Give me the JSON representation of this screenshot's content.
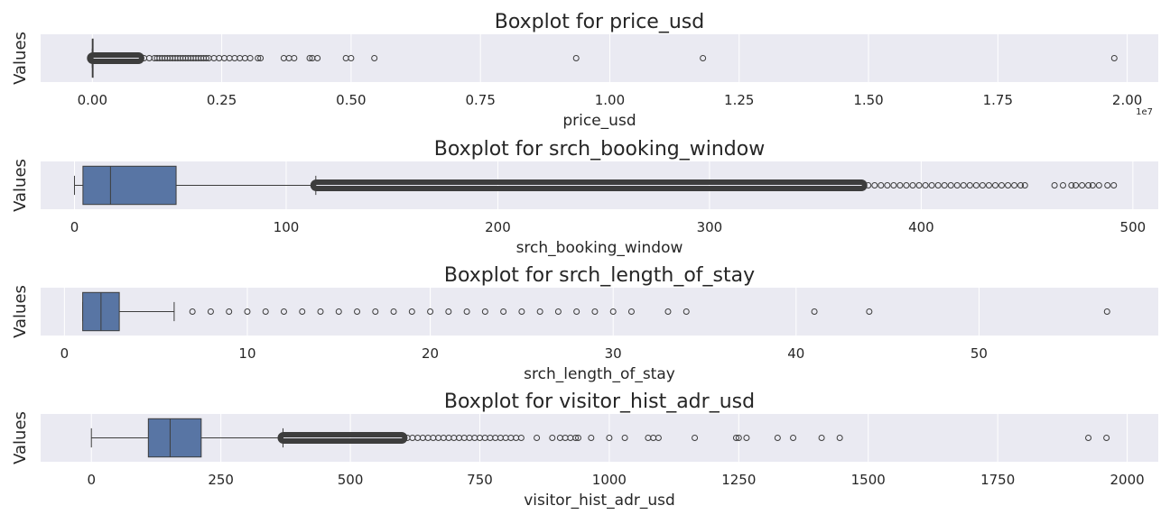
{
  "colors": {
    "panel_bg": "#EAEAF2",
    "grid": "#FFFFFF",
    "box_fill": "#5875A4",
    "line": "#3D3D3D",
    "text": "#262626"
  },
  "chart_data": [
    {
      "type": "box",
      "title": "Boxplot for price_usd",
      "xlabel": "price_usd",
      "ylabel": "Values",
      "xlim": [
        -0.1,
        2.06
      ],
      "xticks": [
        0,
        0.25,
        0.5,
        0.75,
        1.0,
        1.25,
        1.5,
        1.75,
        2.0
      ],
      "xtick_labels": [
        "0.00",
        "0.25",
        "0.50",
        "0.75",
        "1.00",
        "1.25",
        "1.50",
        "1.75",
        "2.00"
      ],
      "offset_label": "1e7",
      "grid": true,
      "box": {
        "whisker_low": 0.0,
        "q1": 0.0,
        "median": 0.0,
        "q3": 0.0,
        "whisker_high": 0.0
      },
      "outlier_band": [
        0.0,
        0.09
      ],
      "outliers": [
        0.1,
        0.11,
        0.12,
        0.125,
        0.13,
        0.135,
        0.14,
        0.145,
        0.15,
        0.155,
        0.16,
        0.165,
        0.17,
        0.175,
        0.18,
        0.185,
        0.19,
        0.195,
        0.2,
        0.205,
        0.21,
        0.215,
        0.22,
        0.225,
        0.235,
        0.245,
        0.255,
        0.265,
        0.275,
        0.285,
        0.295,
        0.305,
        0.32,
        0.325,
        0.37,
        0.38,
        0.39,
        0.42,
        0.425,
        0.435,
        0.49,
        0.5,
        0.545,
        0.935,
        1.18,
        1.975
      ]
    },
    {
      "type": "box",
      "title": "Boxplot for srch_booking_window",
      "xlabel": "srch_booking_window",
      "ylabel": "Values",
      "xlim": [
        -16,
        512
      ],
      "xticks": [
        0,
        100,
        200,
        300,
        400,
        500
      ],
      "xtick_labels": [
        "0",
        "100",
        "200",
        "300",
        "400",
        "500"
      ],
      "grid": true,
      "box": {
        "whisker_low": 0,
        "q1": 4,
        "median": 17,
        "q3": 48,
        "whisker_high": 114
      },
      "outlier_band": [
        114,
        372
      ],
      "outliers": [
        375,
        378,
        381,
        384,
        387,
        390,
        393,
        396,
        399,
        402,
        405,
        408,
        411,
        414,
        417,
        420,
        423,
        426,
        429,
        432,
        435,
        438,
        441,
        444,
        447,
        449,
        463,
        467,
        471,
        473,
        476,
        479,
        481,
        484,
        488,
        491
      ]
    },
    {
      "type": "box",
      "title": "Boxplot for srch_length_of_stay",
      "xlabel": "srch_length_of_stay",
      "ylabel": "Values",
      "xlim": [
        -1.3,
        59.8
      ],
      "xticks": [
        0,
        10,
        20,
        30,
        40,
        50
      ],
      "xtick_labels": [
        "0",
        "10",
        "20",
        "30",
        "40",
        "50"
      ],
      "grid": true,
      "box": {
        "whisker_low": 1,
        "q1": 1,
        "median": 2,
        "q3": 3,
        "whisker_high": 6
      },
      "outlier_band": null,
      "outliers": [
        7,
        8,
        9,
        10,
        11,
        12,
        13,
        14,
        15,
        16,
        17,
        18,
        19,
        20,
        21,
        22,
        23,
        24,
        25,
        26,
        27,
        28,
        29,
        30,
        31,
        33,
        34,
        41,
        44,
        57
      ]
    },
    {
      "type": "box",
      "title": "Boxplot for visitor_hist_adr_usd",
      "xlabel": "visitor_hist_adr_usd",
      "ylabel": "Values",
      "xlim": [
        -98,
        2060
      ],
      "xticks": [
        0,
        250,
        500,
        750,
        1000,
        1250,
        1500,
        1750,
        2000
      ],
      "xtick_labels": [
        "0",
        "250",
        "500",
        "750",
        "1000",
        "1250",
        "1500",
        "1750",
        "2000"
      ],
      "grid": true,
      "box": {
        "whisker_low": 0,
        "q1": 110,
        "median": 152,
        "q3": 212,
        "whisker_high": 370
      },
      "outlier_band": [
        370,
        600
      ],
      "outliers": [
        610,
        620,
        630,
        640,
        650,
        660,
        670,
        680,
        690,
        700,
        710,
        720,
        730,
        740,
        750,
        760,
        770,
        780,
        790,
        800,
        810,
        820,
        830,
        860,
        890,
        905,
        915,
        925,
        935,
        940,
        965,
        1000,
        1030,
        1075,
        1085,
        1095,
        1165,
        1245,
        1250,
        1265,
        1325,
        1355,
        1410,
        1445,
        1925,
        1960
      ]
    }
  ]
}
